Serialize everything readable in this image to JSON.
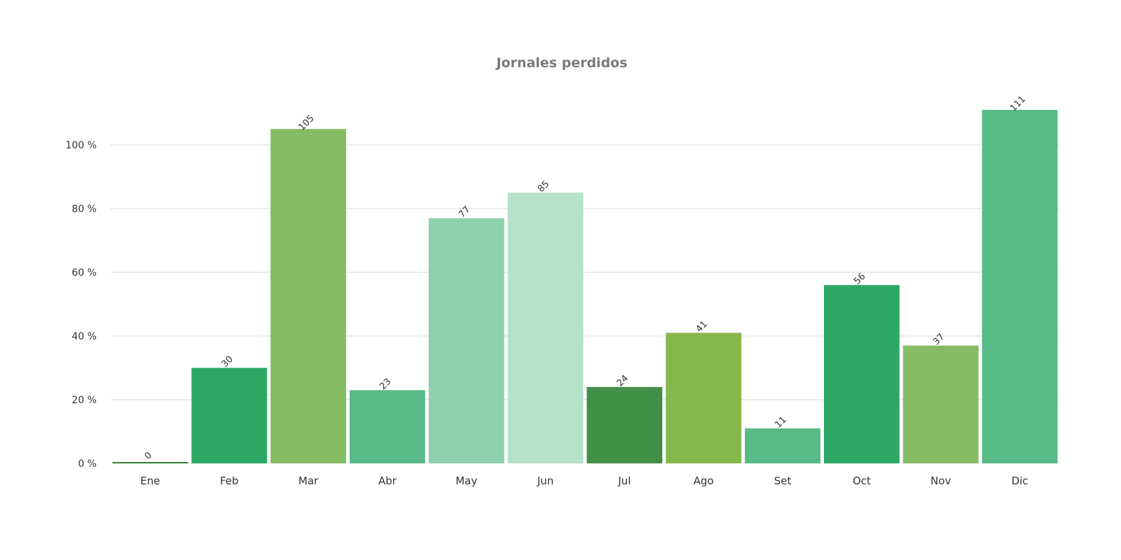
{
  "chart_data": {
    "type": "bar",
    "title": "Jornales perdidos",
    "categories": [
      "Ene",
      "Feb",
      "Mar",
      "Abr",
      "May",
      "Jun",
      "Jul",
      "Ago",
      "Set",
      "Oct",
      "Nov",
      "Dic"
    ],
    "values": [
      0,
      30,
      105,
      23,
      77,
      85,
      24,
      41,
      11,
      56,
      37,
      111
    ],
    "data_labels": [
      "0",
      "30",
      "105",
      "23",
      "77",
      "85",
      "24",
      "41",
      "11",
      "56",
      "37",
      "111"
    ],
    "colors": [
      "#2e7d32",
      "#2ea866",
      "#85bc64",
      "#58ba87",
      "#8fd0ac",
      "#b7e2ca",
      "#428f48",
      "#86b94d",
      "#58ba87",
      "#2ea866",
      "#85bc64",
      "#58ba87"
    ],
    "yticks": [
      {
        "value": 0,
        "label": "0 %"
      },
      {
        "value": 20,
        "label": "20 %"
      },
      {
        "value": 40,
        "label": "40 %"
      },
      {
        "value": 60,
        "label": "60 %"
      },
      {
        "value": 80,
        "label": "80 %"
      },
      {
        "value": 100,
        "label": "100 %"
      }
    ],
    "ylim": [
      0,
      111
    ],
    "grid": true,
    "legend": "none"
  }
}
